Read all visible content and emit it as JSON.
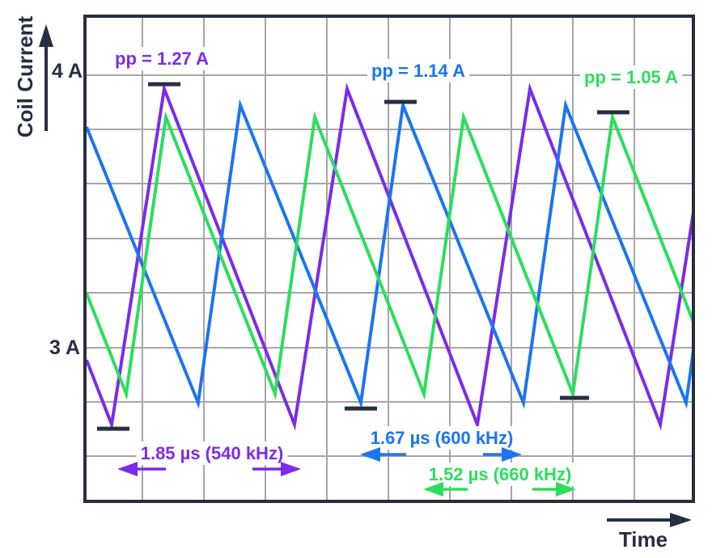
{
  "chart_data": {
    "type": "line",
    "title": "",
    "xlabel": "Time",
    "ylabel": "Coil Current",
    "x_unit": "µs",
    "y_unit": "A",
    "xlim": [
      0,
      6.2
    ],
    "ylim": [
      2.43,
      4.21
    ],
    "grid": true,
    "legend": "none",
    "y_ticks": [
      {
        "value": 4,
        "label": "4 A"
      },
      {
        "value": 3,
        "label": "3 A"
      }
    ],
    "colors": {
      "navy": "#272E42",
      "grid": "#A6A6A6",
      "background": "#FFFFFF"
    },
    "series": [
      {
        "name": "540 kHz ripple",
        "color": "#7C2BEA",
        "pp_label": "pp = 1.27 A",
        "period_label": "1.85 µs (540 kHz)",
        "pp_amps": 1.27,
        "period_us": 1.85,
        "freq_khz": 540,
        "points": [
          [
            0,
            2.955
          ],
          [
            0.256,
            2.718
          ],
          [
            0.793,
            3.95
          ],
          [
            2.124,
            2.718
          ],
          [
            2.661,
            3.95
          ],
          [
            3.992,
            2.718
          ],
          [
            4.529,
            3.95
          ],
          [
            5.86,
            2.718
          ],
          [
            6.198,
            3.496
          ]
        ],
        "peak_marker": {
          "t1": 0.628,
          "t2": 0.959,
          "amps": 3.967
        },
        "trough_marker": {
          "t1": 0.107,
          "t2": 0.438,
          "amps": 2.703
        }
      },
      {
        "name": "600 kHz ripple",
        "color": "#1B75F0",
        "pp_label": "pp = 1.14 A",
        "period_label": "1.67 µs (600 kHz)",
        "pp_amps": 1.14,
        "period_us": 1.67,
        "freq_khz": 600,
        "points": [
          [
            0,
            3.81
          ],
          [
            1.14,
            2.798
          ],
          [
            1.57,
            3.89
          ],
          [
            2.802,
            2.798
          ],
          [
            3.231,
            3.89
          ],
          [
            4.463,
            2.798
          ],
          [
            4.893,
            3.89
          ],
          [
            6.124,
            2.798
          ],
          [
            6.198,
            2.988
          ]
        ],
        "peak_marker": {
          "t1": 3.041,
          "t2": 3.372,
          "amps": 3.902
        },
        "trough_marker": {
          "t1": 2.636,
          "t2": 2.967,
          "amps": 2.777
        }
      },
      {
        "name": "660 kHz ripple",
        "color": "#2BDE5C",
        "pp_label": "pp = 1.05 A",
        "period_label": "1.52 µs (660 kHz)",
        "pp_amps": 1.05,
        "period_us": 1.52,
        "freq_khz": 660,
        "points": [
          [
            0,
            3.199
          ],
          [
            0.405,
            2.831
          ],
          [
            0.81,
            3.846
          ],
          [
            1.926,
            2.831
          ],
          [
            2.331,
            3.846
          ],
          [
            3.446,
            2.831
          ],
          [
            3.851,
            3.846
          ],
          [
            4.967,
            2.831
          ],
          [
            5.372,
            3.846
          ],
          [
            6.198,
            3.095
          ]
        ],
        "peak_marker": {
          "t1": 5.215,
          "t2": 5.545,
          "amps": 3.864
        },
        "trough_marker": {
          "t1": 4.835,
          "t2": 5.132,
          "amps": 2.816
        }
      }
    ]
  }
}
